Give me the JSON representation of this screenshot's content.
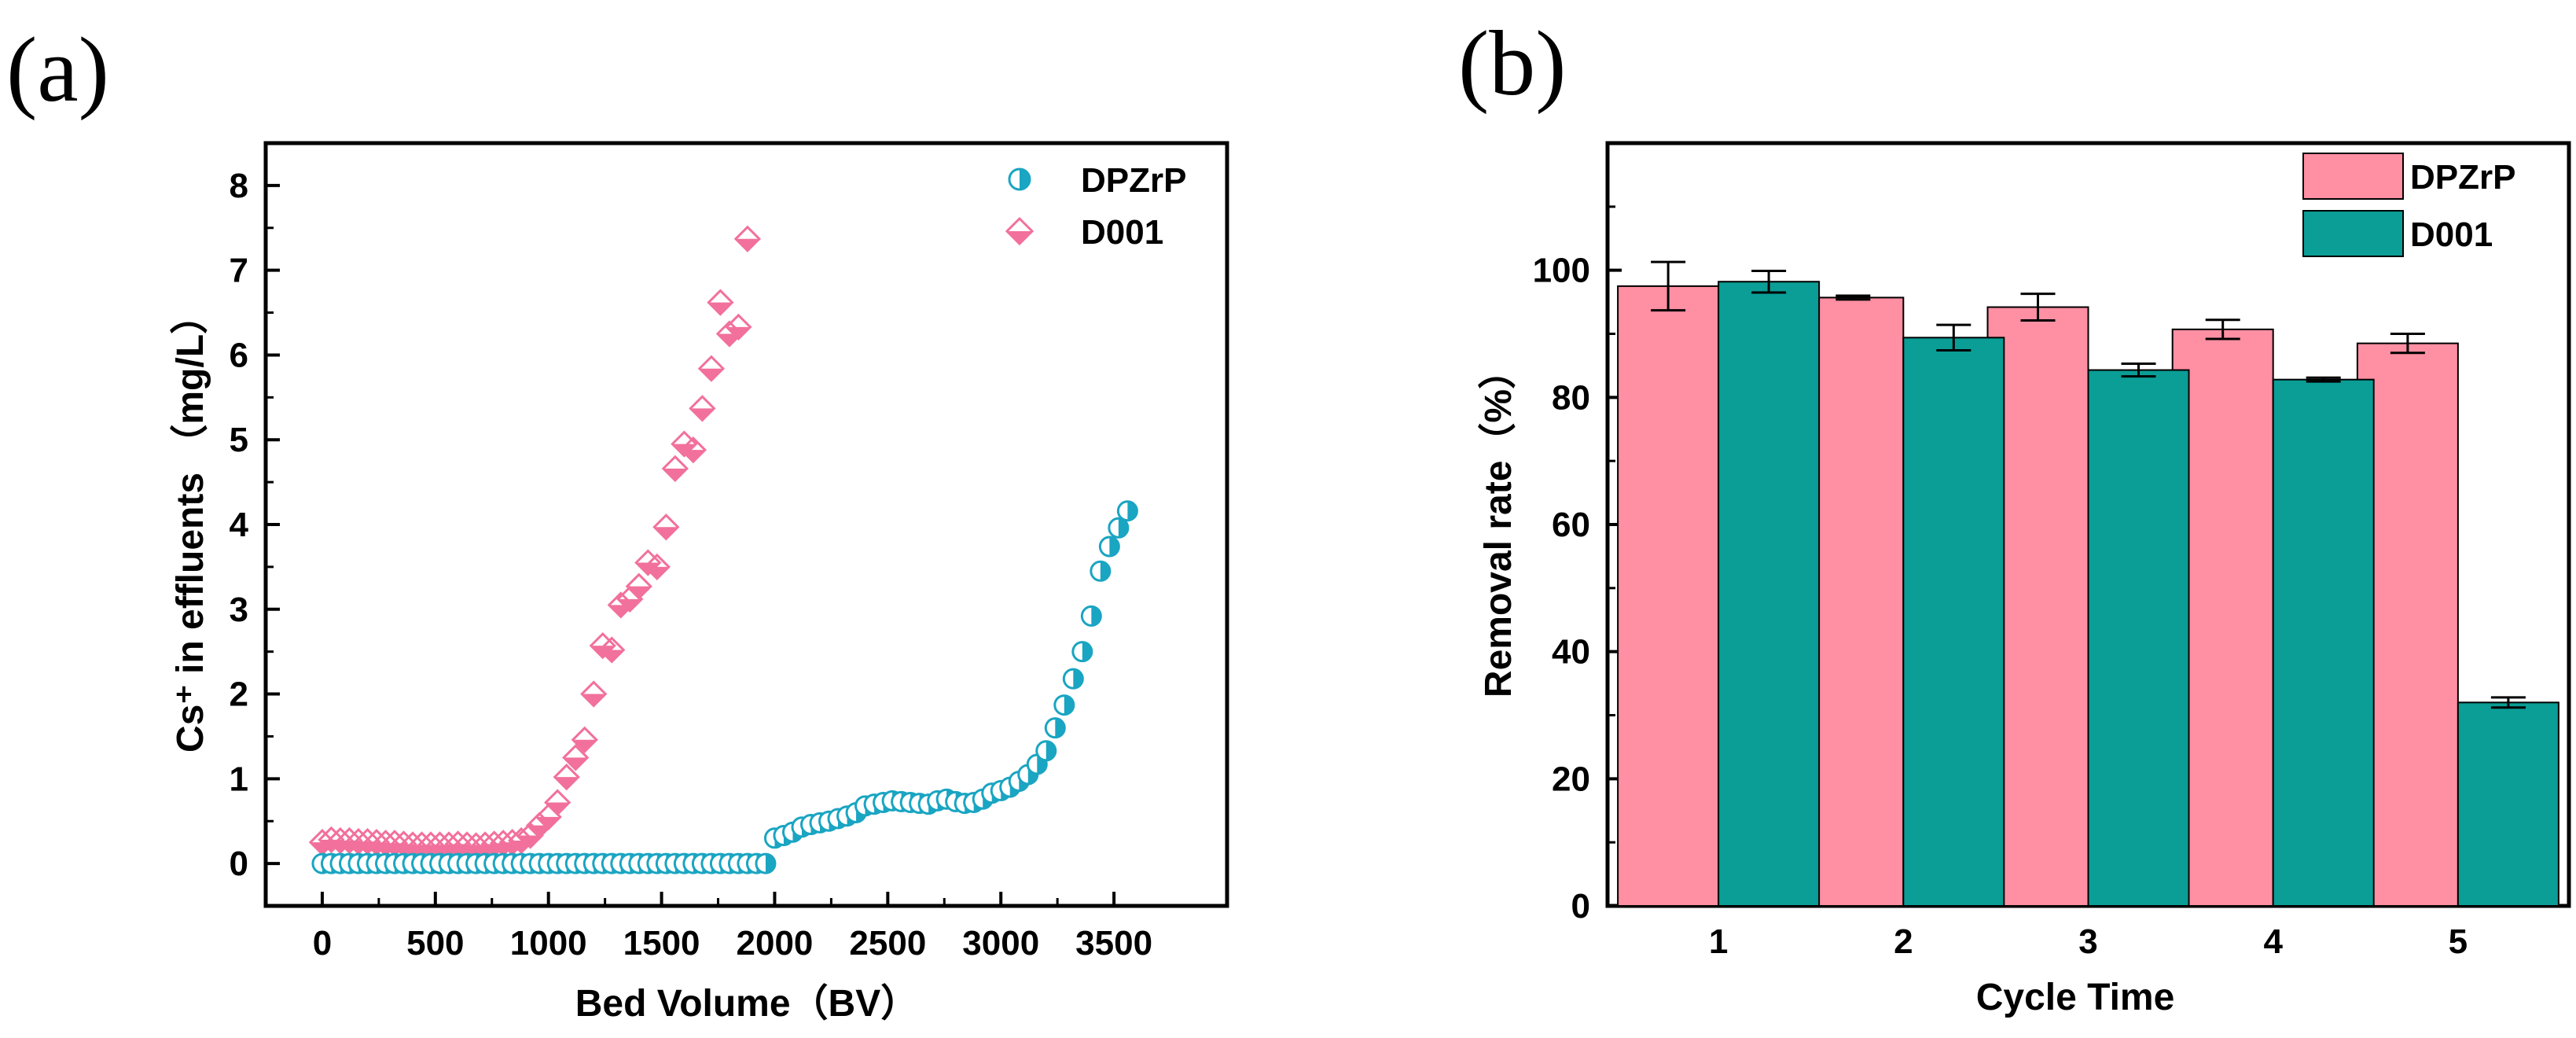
{
  "colors": {
    "teal": "#1AA5C2",
    "pink": "#F2709C",
    "bar_pink": "#FF8FA3",
    "bar_teal": "#0A9E96"
  },
  "chart_data": [
    {
      "panel": "(a)",
      "type": "scatter",
      "xlabel": "Bed Volume（BV）",
      "ylabel": "Cs⁺ in effluents （mg/L）",
      "xlim": [
        -250,
        4000
      ],
      "ylim": [
        -0.5,
        8.5
      ],
      "xticks": [
        0,
        500,
        1000,
        1500,
        2000,
        2500,
        3000,
        3500
      ],
      "yticks": [
        0,
        1,
        2,
        3,
        4,
        5,
        6,
        7,
        8
      ],
      "legend_position": "top-right",
      "series": [
        {
          "name": "DPZrP",
          "marker": "half-circle",
          "color": "#1AA5C2",
          "x": [
            0,
            40,
            80,
            120,
            160,
            200,
            240,
            280,
            320,
            360,
            400,
            440,
            480,
            520,
            560,
            600,
            640,
            680,
            720,
            760,
            800,
            840,
            880,
            920,
            960,
            1000,
            1040,
            1080,
            1120,
            1160,
            1200,
            1240,
            1280,
            1320,
            1360,
            1400,
            1440,
            1480,
            1520,
            1560,
            1600,
            1640,
            1680,
            1720,
            1760,
            1800,
            1840,
            1880,
            1920,
            1960,
            2000,
            2040,
            2080,
            2120,
            2160,
            2200,
            2240,
            2280,
            2320,
            2360,
            2400,
            2440,
            2480,
            2520,
            2560,
            2600,
            2640,
            2680,
            2720,
            2760,
            2800,
            2840,
            2880,
            2920,
            2960,
            3000,
            3040,
            3080,
            3120,
            3160,
            3200,
            3240,
            3280,
            3320,
            3360,
            3400,
            3440,
            3480,
            3520,
            3560
          ],
          "y": [
            0,
            0,
            0,
            0,
            0,
            0,
            0,
            0,
            0,
            0,
            0,
            0,
            0,
            0,
            0,
            0,
            0,
            0,
            0,
            0,
            0,
            0,
            0,
            0,
            0,
            0,
            0,
            0,
            0,
            0,
            0,
            0,
            0,
            0,
            0,
            0,
            0,
            0,
            0,
            0,
            0,
            0,
            0,
            0,
            0,
            0,
            0,
            0,
            0,
            0,
            0.3,
            0.33,
            0.37,
            0.43,
            0.46,
            0.48,
            0.5,
            0.53,
            0.56,
            0.6,
            0.68,
            0.7,
            0.72,
            0.74,
            0.73,
            0.72,
            0.71,
            0.7,
            0.74,
            0.76,
            0.73,
            0.71,
            0.72,
            0.76,
            0.83,
            0.86,
            0.9,
            0.97,
            1.05,
            1.17,
            1.33,
            1.6,
            1.87,
            2.18,
            2.5,
            2.92,
            3.45,
            3.74,
            3.96,
            4.16
          ]
        },
        {
          "name": "D001",
          "marker": "half-diamond",
          "color": "#F2709C",
          "x": [
            0,
            40,
            80,
            120,
            160,
            200,
            240,
            280,
            320,
            360,
            400,
            440,
            480,
            520,
            560,
            600,
            640,
            680,
            720,
            760,
            800,
            840,
            880,
            920,
            960,
            1000,
            1040,
            1080,
            1120,
            1160,
            1200,
            1240,
            1280,
            1320,
            1360,
            1400,
            1440,
            1480,
            1520,
            1560,
            1600,
            1640,
            1680,
            1720,
            1760,
            1800,
            1840,
            1880
          ],
          "y": [
            0.25,
            0.28,
            0.27,
            0.27,
            0.26,
            0.26,
            0.25,
            0.24,
            0.24,
            0.23,
            0.22,
            0.22,
            0.22,
            0.22,
            0.22,
            0.23,
            0.22,
            0.21,
            0.22,
            0.23,
            0.24,
            0.25,
            0.27,
            0.33,
            0.45,
            0.55,
            0.72,
            1.02,
            1.25,
            1.46,
            2.0,
            2.57,
            2.52,
            3.05,
            3.12,
            3.27,
            3.55,
            3.5,
            3.97,
            4.66,
            4.95,
            4.88,
            5.37,
            5.84,
            6.62,
            6.25,
            6.33,
            7.37
          ]
        }
      ]
    },
    {
      "panel": "(b)",
      "type": "bar",
      "xlabel": "Cycle Time",
      "ylabel": "Removal rate（%）",
      "categories": [
        "1",
        "2",
        "3",
        "4",
        "5"
      ],
      "ylim": [
        0,
        120
      ],
      "yticks": [
        0,
        20,
        40,
        60,
        80,
        100
      ],
      "legend_position": "top-right",
      "series": [
        {
          "name": "DPZrP",
          "color": "#FF8FA3",
          "values": [
            97.5,
            95.7,
            94.2,
            90.7,
            88.5
          ],
          "errors": [
            3.8,
            0.3,
            2.1,
            1.5,
            1.5
          ]
        },
        {
          "name": "D001",
          "color": "#0A9E96",
          "values": [
            98.2,
            89.4,
            84.3,
            82.8,
            32.0
          ],
          "errors": [
            1.7,
            2.0,
            1.0,
            0.3,
            0.8
          ]
        }
      ]
    }
  ]
}
